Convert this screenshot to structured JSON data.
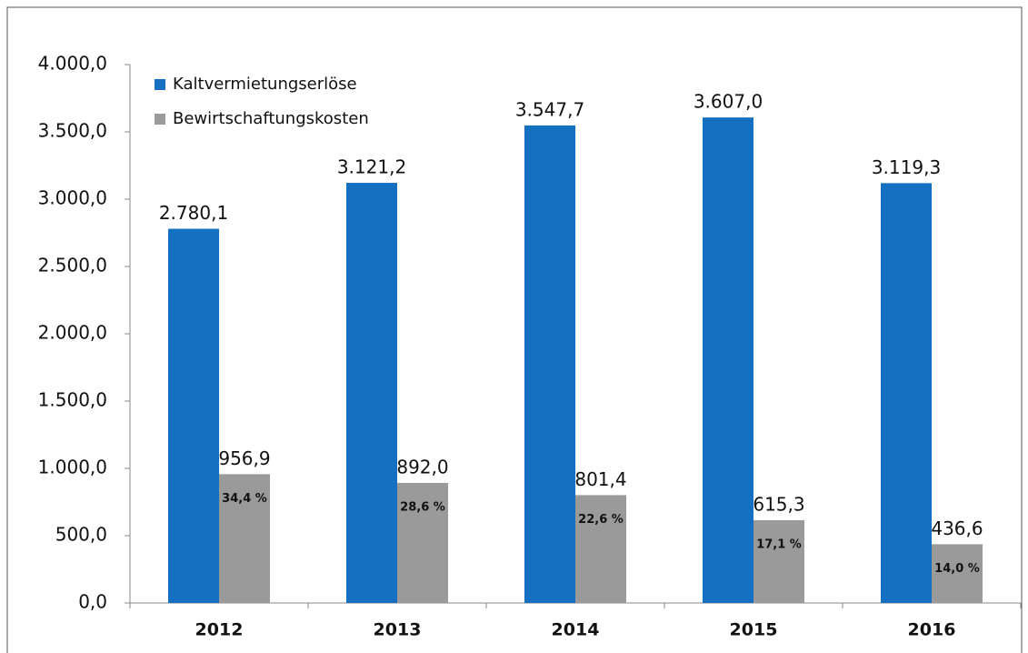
{
  "chart_data": {
    "type": "bar",
    "categories": [
      "2012",
      "2013",
      "2014",
      "2015",
      "2016"
    ],
    "series": [
      {
        "name": "Kaltvermietungserlöse",
        "color": "#1670c2",
        "values": [
          2780.1,
          3121.2,
          3547.7,
          3607.0,
          3119.3
        ],
        "value_labels": [
          "2.780,1",
          "3.121,2",
          "3.547,7",
          "3.607,0",
          "3.119,3"
        ]
      },
      {
        "name": "Bewirtschaftungskosten",
        "color": "#9a9a9a",
        "values": [
          956.9,
          892.0,
          801.4,
          615.3,
          436.6
        ],
        "value_labels": [
          "956,9",
          "892,0",
          "801,4",
          "615,3",
          "436,6"
        ],
        "annotations": [
          "34,4 %",
          "28,6 %",
          "22,6 %",
          "17,1 %",
          "14,0 %"
        ]
      }
    ],
    "ylim": [
      0,
      4000
    ],
    "yticks": [
      {
        "value": 0,
        "label": "0,0"
      },
      {
        "value": 500,
        "label": "500,0"
      },
      {
        "value": 1000,
        "label": "1.000,0"
      },
      {
        "value": 1500,
        "label": "1.500,0"
      },
      {
        "value": 2000,
        "label": "2.000,0"
      },
      {
        "value": 2500,
        "label": "2.500,0"
      },
      {
        "value": 3000,
        "label": "3.000,0"
      },
      {
        "value": 3500,
        "label": "3.500,0"
      },
      {
        "value": 4000,
        "label": "4.000,0"
      }
    ],
    "legend": "top-left"
  }
}
